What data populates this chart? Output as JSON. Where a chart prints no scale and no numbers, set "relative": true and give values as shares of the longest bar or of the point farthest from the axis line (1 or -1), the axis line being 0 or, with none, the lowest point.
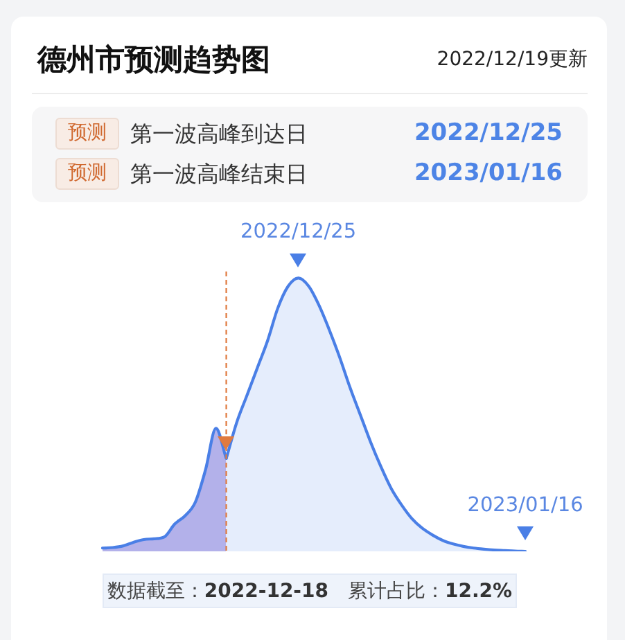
{
  "chart_data": {
    "type": "area",
    "title": "德州市预测趋势图",
    "subtitle": "2022/12/19更新",
    "relative": true,
    "tick_labels": false,
    "categories": [
      null,
      null,
      null,
      null,
      null,
      null,
      null,
      null,
      null,
      null,
      null,
      null,
      null,
      null,
      null,
      null,
      null,
      null,
      null,
      null,
      null,
      null,
      null,
      null,
      null,
      null,
      null,
      null,
      null,
      null,
      null,
      null,
      null,
      null,
      null,
      null,
      null,
      null,
      null,
      null,
      null,
      null
    ],
    "series": [
      {
        "color": "#b3b1ea",
        "values": [
          0.012,
          0.014,
          0.02,
          0.033,
          0.043,
          0.046,
          0.053,
          0.1,
          0.13,
          0.18,
          0.3,
          0.45,
          0.34,
          null,
          null,
          null,
          null,
          null,
          null,
          null,
          null,
          null,
          null,
          null,
          null,
          null,
          null,
          null,
          null,
          null,
          null,
          null,
          null,
          null,
          null,
          null,
          null,
          null,
          null,
          null,
          null,
          null
        ]
      },
      {
        "color": "#e5edfc",
        "values": [
          null,
          null,
          null,
          null,
          null,
          null,
          null,
          null,
          null,
          null,
          null,
          null,
          0.34,
          0.47,
          0.57,
          0.67,
          0.77,
          0.89,
          0.97,
          1,
          0.97,
          0.9,
          0.81,
          0.71,
          0.6,
          0.5,
          0.4,
          0.31,
          0.23,
          0.17,
          0.12,
          0.085,
          0.06,
          0.04,
          0.027,
          0.018,
          0.012,
          0.008,
          0.005,
          0.003,
          0.001,
          0
        ]
      }
    ],
    "annotations": [
      {
        "text": "2022/12/25",
        "y": 1
      },
      {
        "text": "2023/01/16",
        "y": 0
      },
      "预测",
      "第一波高峰到达日",
      "2022/12/25",
      "预测",
      "第一波高峰结束日",
      "2023/01/16",
      "数据截至：2022-12-18",
      "累计占比：12.2%"
    ]
  }
}
